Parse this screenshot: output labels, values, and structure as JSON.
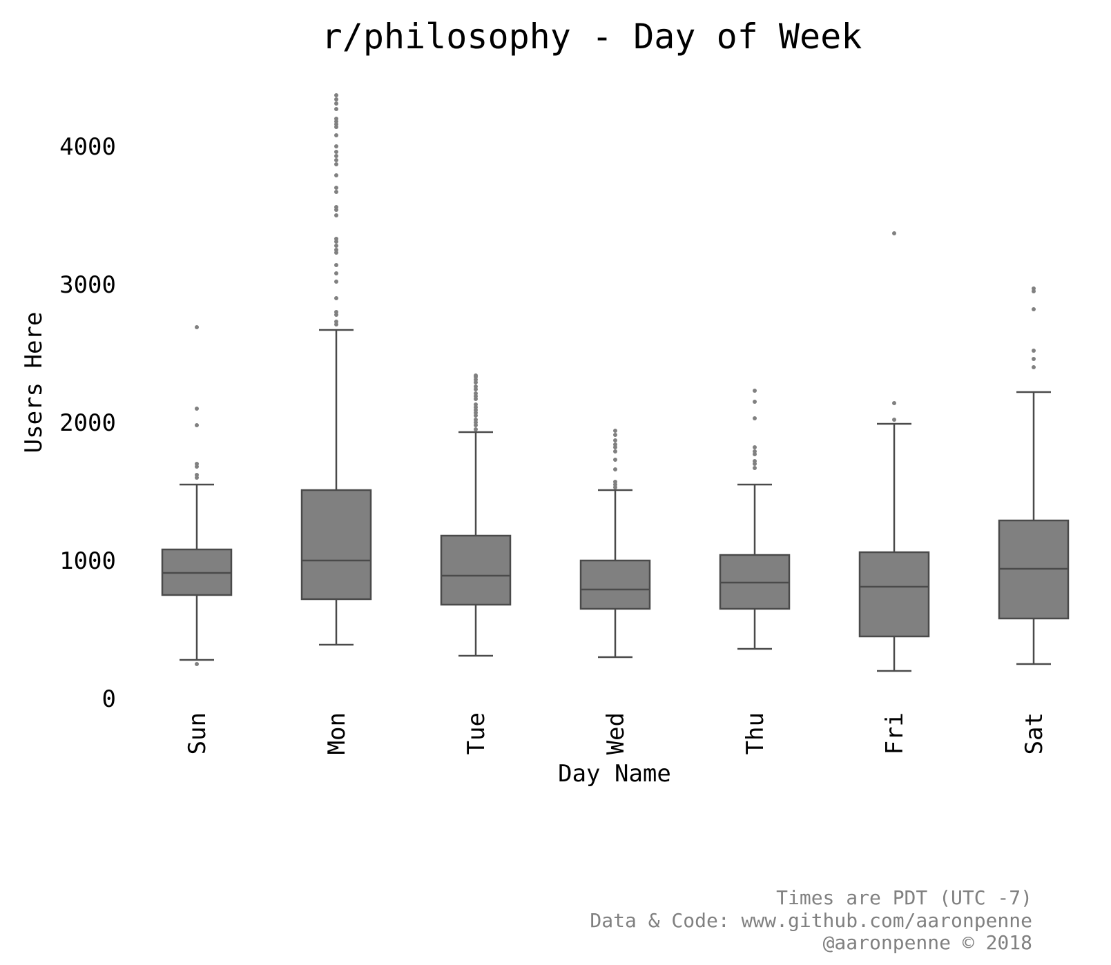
{
  "chart_data": {
    "type": "box",
    "title": "r/philosophy - Day of Week",
    "xlabel": "Day Name",
    "ylabel": "Users Here",
    "ylim": [
      0,
      4450
    ],
    "yticks": [
      0,
      1000,
      2000,
      3000,
      4000
    ],
    "grid": false,
    "legend": "none",
    "colors": {
      "box_fill": "#808080",
      "line": "#4a4a4a",
      "outlier": "#808080"
    },
    "categories": [
      "Sun",
      "Mon",
      "Tue",
      "Wed",
      "Thu",
      "Fri",
      "Sat"
    ],
    "boxes": [
      {
        "label": "Sun",
        "whisker_low": 280,
        "q1": 750,
        "median": 910,
        "q3": 1080,
        "whisker_high": 1550,
        "outliers": [
          250,
          1600,
          1620,
          1680,
          1700,
          1980,
          2100,
          2690
        ]
      },
      {
        "label": "Mon",
        "whisker_low": 390,
        "q1": 720,
        "median": 1000,
        "q3": 1510,
        "whisker_high": 2670,
        "outliers": [
          2710,
          2730,
          2780,
          2800,
          2900,
          3020,
          3080,
          3140,
          3230,
          3250,
          3280,
          3310,
          3330,
          3500,
          3540,
          3560,
          3670,
          3700,
          3790,
          3870,
          3900,
          3930,
          3960,
          4000,
          4080,
          4140,
          4160,
          4180,
          4200,
          4270,
          4310,
          4340,
          4370
        ]
      },
      {
        "label": "Tue",
        "whisker_low": 310,
        "q1": 680,
        "median": 890,
        "q3": 1180,
        "whisker_high": 1930,
        "outliers": [
          1950,
          1980,
          2000,
          2020,
          2050,
          2070,
          2090,
          2110,
          2130,
          2170,
          2190,
          2210,
          2240,
          2260,
          2290,
          2310,
          2330,
          2340
        ]
      },
      {
        "label": "Wed",
        "whisker_low": 300,
        "q1": 650,
        "median": 790,
        "q3": 1000,
        "whisker_high": 1510,
        "outliers": [
          1530,
          1550,
          1570,
          1660,
          1730,
          1790,
          1820,
          1840,
          1870,
          1910,
          1940
        ]
      },
      {
        "label": "Thu",
        "whisker_low": 360,
        "q1": 650,
        "median": 840,
        "q3": 1040,
        "whisker_high": 1550,
        "outliers": [
          1670,
          1700,
          1720,
          1770,
          1790,
          1820,
          2030,
          2150,
          2230
        ]
      },
      {
        "label": "Fri",
        "whisker_low": 200,
        "q1": 450,
        "median": 810,
        "q3": 1060,
        "whisker_high": 1990,
        "outliers": [
          2020,
          2140,
          3370
        ]
      },
      {
        "label": "Sat",
        "whisker_low": 250,
        "q1": 580,
        "median": 940,
        "q3": 1290,
        "whisker_high": 2220,
        "outliers": [
          2400,
          2460,
          2520,
          2820,
          2950,
          2970
        ]
      }
    ]
  },
  "footer": {
    "line1": "Times are PDT (UTC -7)",
    "line2": "Data & Code: www.github.com/aaronpenne",
    "line3": "@aaronpenne © 2018"
  }
}
